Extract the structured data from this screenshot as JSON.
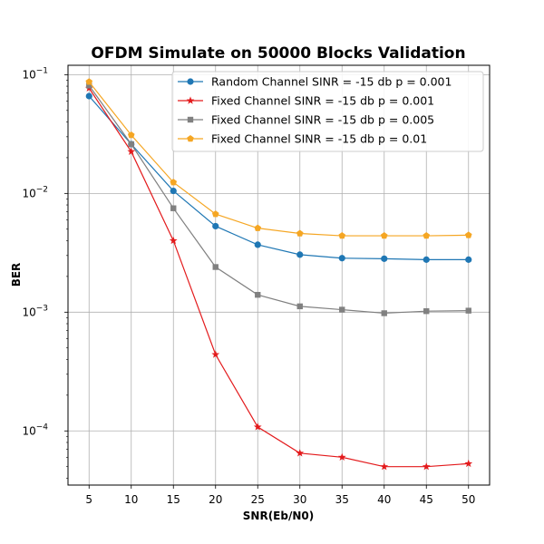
{
  "chart_data": {
    "type": "line",
    "title": "OFDM Simulate on 50000 Blocks Validation",
    "xlabel": "SNR(Eb/N0)",
    "ylabel": "BER",
    "x": [
      5,
      10,
      15,
      20,
      25,
      30,
      35,
      40,
      45,
      50
    ],
    "xlim": [
      2.5,
      52.5
    ],
    "ylim": [
      3.5e-05,
      0.12
    ],
    "yscale": "log",
    "grid": true,
    "legend_position": "top-right",
    "series": [
      {
        "name": "Random Channel SINR = -15 db p = 0.001",
        "color": "#1f77b4",
        "marker": "circle",
        "values": [
          0.066,
          0.026,
          0.0105,
          0.0053,
          0.0037,
          0.00305,
          0.00285,
          0.00282,
          0.00277,
          0.00277
        ]
      },
      {
        "name": "Fixed Channel SINR = -15 db p = 0.001",
        "color": "#e31a1c",
        "marker": "star",
        "values": [
          0.077,
          0.0225,
          0.004,
          0.00044,
          0.000108,
          6.5e-05,
          6e-05,
          5e-05,
          5e-05,
          5.3e-05
        ]
      },
      {
        "name": "Fixed Channel SINR = -15 db p = 0.005",
        "color": "#808080",
        "marker": "square",
        "values": [
          0.081,
          0.026,
          0.0075,
          0.0024,
          0.0014,
          0.00112,
          0.00105,
          0.00098,
          0.00102,
          0.00103
        ]
      },
      {
        "name": "Fixed Channel SINR = -15 db p = 0.01",
        "color": "#f5a623",
        "marker": "pentagon",
        "values": [
          0.087,
          0.031,
          0.0124,
          0.0067,
          0.0051,
          0.0046,
          0.0044,
          0.0044,
          0.0044,
          0.00445
        ]
      }
    ],
    "x_ticks": [
      "5",
      "10",
      "15",
      "20",
      "25",
      "30",
      "35",
      "40",
      "45",
      "50"
    ],
    "y_ticks": [
      {
        "value": 0.1,
        "base": "10",
        "exp": "−1"
      },
      {
        "value": 0.01,
        "base": "10",
        "exp": "−2"
      },
      {
        "value": 0.001,
        "base": "10",
        "exp": "−3"
      },
      {
        "value": 0.0001,
        "base": "10",
        "exp": "−4"
      }
    ]
  }
}
